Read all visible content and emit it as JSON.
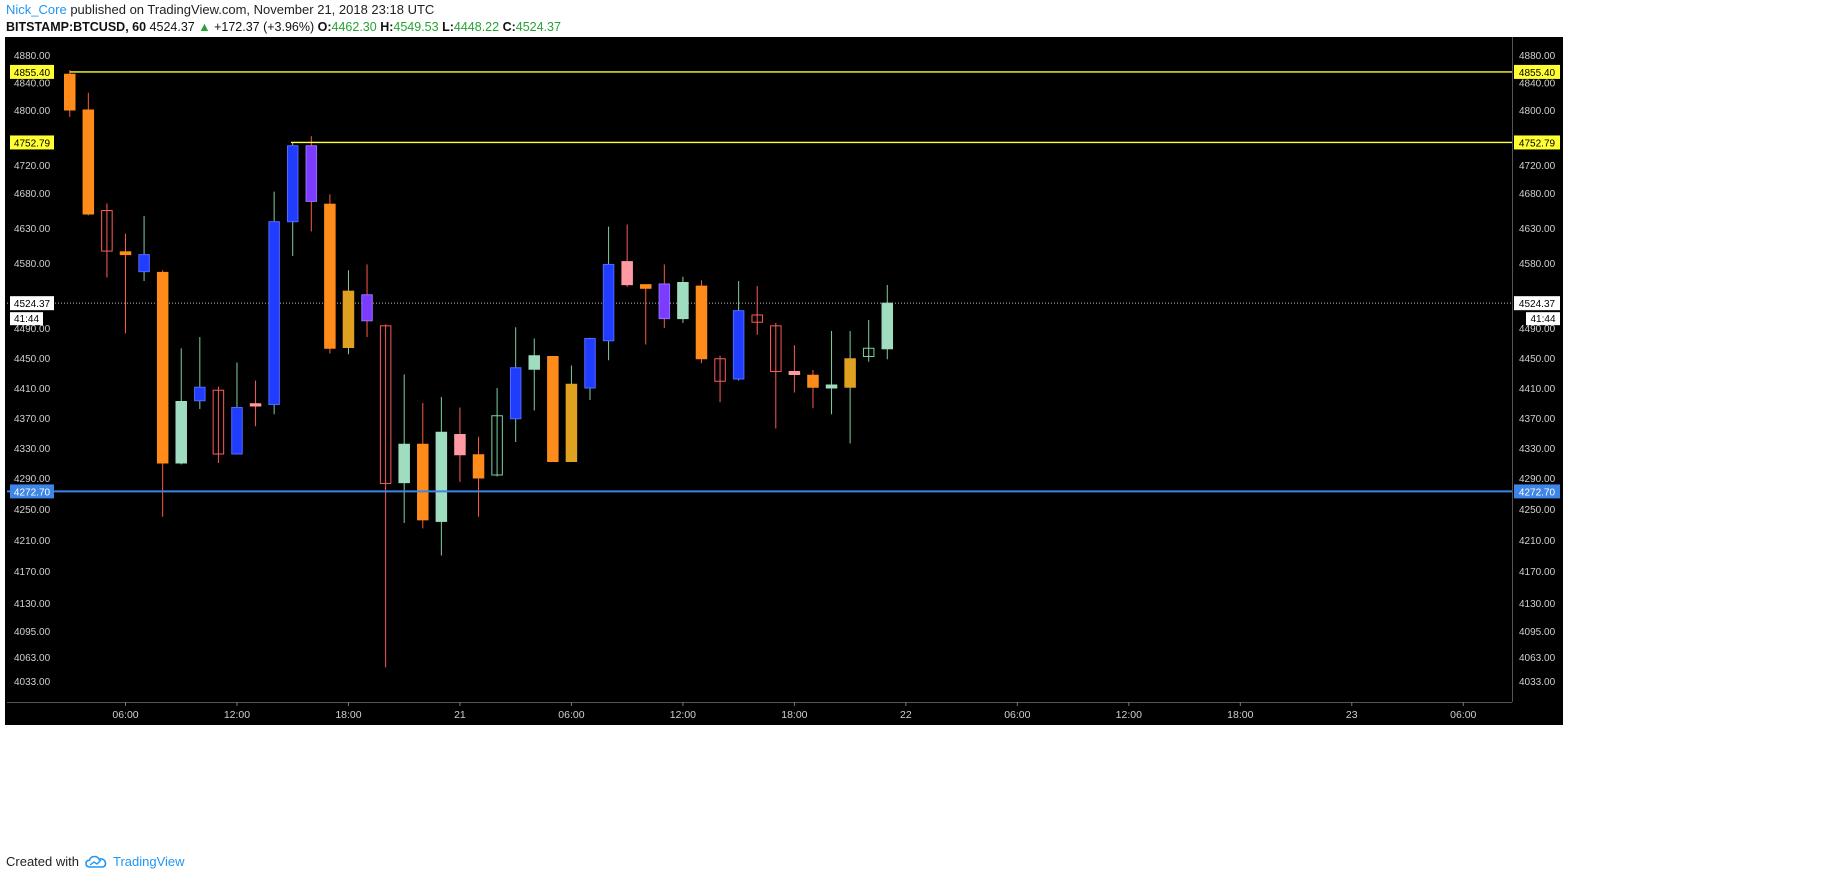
{
  "header": {
    "author": "Nick_Core",
    "published_text": "published on TradingView.com, November 21, 2018 23:18 UTC",
    "symbol": "BITSTAMP:BTCUSD, 60",
    "last": "4524.37",
    "change_arrow": "▲",
    "change": "+172.37 (+3.96%)",
    "o_label": "O:",
    "o_value": "4462.30",
    "h_label": "H:",
    "h_value": "4549.53",
    "l_label": "L:",
    "l_value": "4448.22",
    "c_label": "C:",
    "c_value": "4524.37"
  },
  "footer": {
    "created_with": "Created with",
    "brand": "TradingView",
    "brand_icon": "tradingview-cloud-icon"
  },
  "colors": {
    "background": "#000000",
    "hline_yellow": "#ffff33",
    "hline_blue": "#3d85e6",
    "last_price_line": "#bbbbbb",
    "bull_light": "#9fdcc0",
    "bull_blue": "#1f3cff",
    "bear_orange": "#ff8c1a",
    "bear_pink": "#ff9aa2",
    "purple": "#7a3cff",
    "gold": "#e0a020"
  },
  "chart_data": {
    "type": "candlestick",
    "symbol": "BITSTAMP:BTCUSD",
    "interval": "60",
    "y_ticks": [
      "4880.00",
      "4840.00",
      "4800.00",
      "4720.00",
      "4680.00",
      "4630.00",
      "4580.00",
      "4490.00",
      "4450.00",
      "4410.00",
      "4370.00",
      "4330.00",
      "4290.00",
      "4250.00",
      "4210.00",
      "4170.00",
      "4130.00",
      "4095.00",
      "4063.00",
      "4033.00"
    ],
    "x_ticks": [
      {
        "label": "06:00",
        "hour": 6
      },
      {
        "label": "12:00",
        "hour": 12
      },
      {
        "label": "18:00",
        "hour": 18
      },
      {
        "label": "21",
        "hour": 24
      },
      {
        "label": "06:00",
        "hour": 30
      },
      {
        "label": "12:00",
        "hour": 36
      },
      {
        "label": "18:00",
        "hour": 42
      },
      {
        "label": "22",
        "hour": 48
      },
      {
        "label": "06:00",
        "hour": 54
      },
      {
        "label": "12:00",
        "hour": 60
      },
      {
        "label": "18:00",
        "hour": 66
      },
      {
        "label": "23",
        "hour": 72
      },
      {
        "label": "06:00",
        "hour": 78
      }
    ],
    "horizontal_lines": [
      {
        "price": "4855.40",
        "color": "yellow"
      },
      {
        "price": "4752.79",
        "color": "yellow"
      },
      {
        "price": "4272.70",
        "color": "blue"
      }
    ],
    "last_price": {
      "price": "4524.37",
      "countdown": "41:44"
    },
    "candles": [
      {
        "hour": 3,
        "o": 4800,
        "h": 4858,
        "l": 4790,
        "c": 4852,
        "style": "bear_orange"
      },
      {
        "hour": 4,
        "o": 4800,
        "h": 4825,
        "l": 4648,
        "c": 4650,
        "style": "bear_orange"
      },
      {
        "hour": 5,
        "o": 4655,
        "h": 4665,
        "l": 4560,
        "c": 4597,
        "style": "hollow_red"
      },
      {
        "hour": 6,
        "o": 4596,
        "h": 4622,
        "l": 4483,
        "c": 4592,
        "style": "bear_orange"
      },
      {
        "hour": 7,
        "o": 4568,
        "h": 4647,
        "l": 4555,
        "c": 4592,
        "style": "bull_blue"
      },
      {
        "hour": 8,
        "o": 4567,
        "h": 4570,
        "l": 4240,
        "c": 4310,
        "style": "bear_orange"
      },
      {
        "hour": 9,
        "o": 4310,
        "h": 4463,
        "l": 4308,
        "c": 4392,
        "style": "bull_light"
      },
      {
        "hour": 10,
        "o": 4393,
        "h": 4478,
        "l": 4382,
        "c": 4411,
        "style": "bull_blue"
      },
      {
        "hour": 11,
        "o": 4407,
        "h": 4412,
        "l": 4310,
        "c": 4322,
        "style": "hollow_red"
      },
      {
        "hour": 12,
        "o": 4322,
        "h": 4444,
        "l": 4322,
        "c": 4384,
        "style": "bull_blue"
      },
      {
        "hour": 13,
        "o": 4389,
        "h": 4420,
        "l": 4359,
        "c": 4386,
        "style": "bear_pink"
      },
      {
        "hour": 14,
        "o": 4388,
        "h": 4682,
        "l": 4375,
        "c": 4639,
        "style": "bull_blue"
      },
      {
        "hour": 15,
        "o": 4639,
        "h": 4752,
        "l": 4590,
        "c": 4748,
        "style": "bull_blue"
      },
      {
        "hour": 16,
        "o": 4748,
        "h": 4762,
        "l": 4625,
        "c": 4668,
        "style": "purple"
      },
      {
        "hour": 17,
        "o": 4664,
        "h": 4678,
        "l": 4456,
        "c": 4463,
        "style": "bear_orange"
      },
      {
        "hour": 18,
        "o": 4464,
        "h": 4570,
        "l": 4455,
        "c": 4541,
        "style": "gold"
      },
      {
        "hour": 19,
        "o": 4500,
        "h": 4578,
        "l": 4478,
        "c": 4536,
        "style": "purple"
      },
      {
        "hour": 20,
        "o": 4493,
        "h": 4495,
        "l": 4050,
        "c": 4283,
        "style": "hollow_red"
      },
      {
        "hour": 21,
        "o": 4284,
        "h": 4428,
        "l": 4232,
        "c": 4335,
        "style": "bull_light"
      },
      {
        "hour": 22,
        "o": 4335,
        "h": 4390,
        "l": 4225,
        "c": 4236,
        "style": "bear_orange"
      },
      {
        "hour": 23,
        "o": 4234,
        "h": 4398,
        "l": 4190,
        "c": 4351,
        "style": "bull_light"
      },
      {
        "hour": 24,
        "o": 4348,
        "h": 4384,
        "l": 4285,
        "c": 4321,
        "style": "bear_pink"
      },
      {
        "hour": 25,
        "o": 4321,
        "h": 4345,
        "l": 4240,
        "c": 4290,
        "style": "bear_orange"
      },
      {
        "hour": 26,
        "o": 4294,
        "h": 4410,
        "l": 4292,
        "c": 4373,
        "style": "hollow_green"
      },
      {
        "hour": 27,
        "o": 4369,
        "h": 4491,
        "l": 4338,
        "c": 4437,
        "style": "bull_blue"
      },
      {
        "hour": 28,
        "o": 4435,
        "h": 4476,
        "l": 4380,
        "c": 4453,
        "style": "bull_light"
      },
      {
        "hour": 29,
        "o": 4452,
        "h": 4452,
        "l": 4312,
        "c": 4312,
        "style": "bear_orange"
      },
      {
        "hour": 30,
        "o": 4415,
        "h": 4440,
        "l": 4312,
        "c": 4312,
        "style": "gold"
      },
      {
        "hour": 31,
        "o": 4410,
        "h": 4477,
        "l": 4394,
        "c": 4476,
        "style": "bull_blue"
      },
      {
        "hour": 32,
        "o": 4473,
        "h": 4632,
        "l": 4447,
        "c": 4578,
        "style": "bull_blue"
      },
      {
        "hour": 33,
        "o": 4582,
        "h": 4635,
        "l": 4547,
        "c": 4550,
        "style": "bear_pink"
      },
      {
        "hour": 34,
        "o": 4550,
        "h": 4550,
        "l": 4468,
        "c": 4545,
        "style": "bear_orange"
      },
      {
        "hour": 35,
        "o": 4503,
        "h": 4578,
        "l": 4490,
        "c": 4551,
        "style": "purple"
      },
      {
        "hour": 36,
        "o": 4503,
        "h": 4561,
        "l": 4497,
        "c": 4553,
        "style": "bull_light"
      },
      {
        "hour": 37,
        "o": 4548,
        "h": 4556,
        "l": 4443,
        "c": 4449,
        "style": "bear_orange"
      },
      {
        "hour": 38,
        "o": 4449,
        "h": 4453,
        "l": 4391,
        "c": 4419,
        "style": "hollow_red"
      },
      {
        "hour": 39,
        "o": 4422,
        "h": 4555,
        "l": 4420,
        "c": 4514,
        "style": "bull_blue"
      },
      {
        "hour": 40,
        "o": 4508,
        "h": 4548,
        "l": 4481,
        "c": 4498,
        "style": "hollow_red"
      },
      {
        "hour": 41,
        "o": 4493,
        "h": 4497,
        "l": 4356,
        "c": 4432,
        "style": "hollow_red"
      },
      {
        "hour": 42,
        "o": 4432,
        "h": 4467,
        "l": 4404,
        "c": 4428,
        "style": "bear_pink"
      },
      {
        "hour": 43,
        "o": 4427,
        "h": 4434,
        "l": 4383,
        "c": 4411,
        "style": "bear_orange"
      },
      {
        "hour": 44,
        "o": 4410,
        "h": 4486,
        "l": 4375,
        "c": 4414,
        "style": "bull_light"
      },
      {
        "hour": 45,
        "o": 4411,
        "h": 4486,
        "l": 4336,
        "c": 4449,
        "style": "gold"
      },
      {
        "hour": 46,
        "o": 4452,
        "h": 4501,
        "l": 4445,
        "c": 4463,
        "style": "hollow_green"
      },
      {
        "hour": 47,
        "o": 4462.3,
        "h": 4549.53,
        "l": 4448.22,
        "c": 4524.37,
        "style": "bull_light"
      }
    ]
  }
}
